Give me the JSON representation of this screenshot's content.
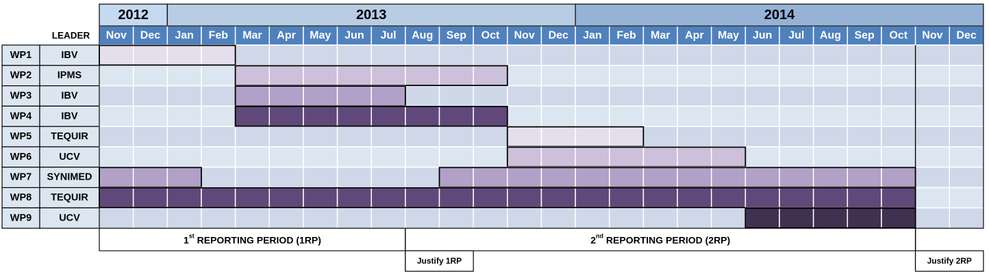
{
  "header": {
    "leader_label": "LEADER"
  },
  "years": [
    {
      "label": "2012",
      "start": 0,
      "span": 2,
      "color": "#C5D9F1"
    },
    {
      "label": "2013",
      "start": 2,
      "span": 12,
      "color": "#B8CCE4"
    },
    {
      "label": "2014",
      "start": 14,
      "span": 12,
      "color": "#95B3D7"
    }
  ],
  "months": [
    "Nov",
    "Dec",
    "Jan",
    "Feb",
    "Mar",
    "Apr",
    "May",
    "Jun",
    "Jul",
    "Aug",
    "Sep",
    "Oct",
    "Nov",
    "Dec",
    "Jan",
    "Feb",
    "Mar",
    "Apr",
    "May",
    "Jun",
    "Jul",
    "Aug",
    "Sep",
    "Oct",
    "Nov",
    "Dec"
  ],
  "work_packages": [
    {
      "id": "WP1",
      "leader": "IBV",
      "bars": [
        {
          "start": 0,
          "end": 4,
          "color": "#E4DFEC"
        }
      ]
    },
    {
      "id": "WP2",
      "leader": "IPMS",
      "bars": [
        {
          "start": 4,
          "end": 12,
          "color": "#CCC0DA"
        }
      ]
    },
    {
      "id": "WP3",
      "leader": "IBV",
      "bars": [
        {
          "start": 4,
          "end": 9,
          "color": "#B1A0C7"
        }
      ]
    },
    {
      "id": "WP4",
      "leader": "IBV",
      "bars": [
        {
          "start": 4,
          "end": 12,
          "color": "#60497A"
        }
      ]
    },
    {
      "id": "WP5",
      "leader": "TEQUIR",
      "bars": [
        {
          "start": 12,
          "end": 16,
          "color": "#E4DFEC"
        }
      ]
    },
    {
      "id": "WP6",
      "leader": "UCV",
      "bars": [
        {
          "start": 12,
          "end": 19,
          "color": "#CCC0DA"
        }
      ]
    },
    {
      "id": "WP7",
      "leader": "SYNIMED",
      "bars": [
        {
          "start": 0,
          "end": 3,
          "color": "#B1A0C7"
        },
        {
          "start": 10,
          "end": 24,
          "color": "#B1A0C7"
        }
      ]
    },
    {
      "id": "WP8",
      "leader": "TEQUIR",
      "bars": [
        {
          "start": 0,
          "end": 24,
          "color": "#60497A"
        }
      ]
    },
    {
      "id": "WP9",
      "leader": "UCV",
      "bars": [
        {
          "start": 19,
          "end": 24,
          "color": "#403151"
        }
      ]
    }
  ],
  "reporting_periods": [
    {
      "prefix": "1",
      "sup": "st",
      "rest": " REPORTING PERIOD (1RP)",
      "start": 0,
      "end": 9
    },
    {
      "prefix": "2",
      "sup": "nd",
      "rest": " REPORTING PERIOD (2RP)",
      "start": 9,
      "end": 24
    }
  ],
  "justify": [
    {
      "label": "Justify 1RP",
      "start": 9,
      "end": 11
    },
    {
      "label": "Justify 2RP",
      "start": 24,
      "end": 26
    }
  ],
  "colors": {
    "month_header": "#4F81BD",
    "empty_cell": "#DCE6F1",
    "empty_cell_alt": "#CFD8E8",
    "row_label_bg": "#DCE6F1",
    "border": "#000000"
  }
}
